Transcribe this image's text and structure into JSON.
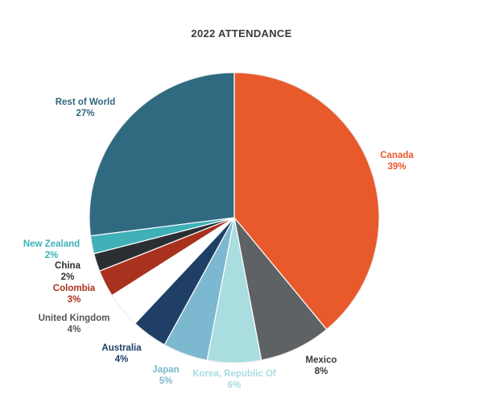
{
  "chart_data": {
    "type": "pie",
    "title": "2022 ATTENDANCE",
    "slices": [
      {
        "label": "Canada",
        "value": 39,
        "value_label": "39%",
        "color": "#e85a2c",
        "text_color": "#e85a2c"
      },
      {
        "label": "Mexico",
        "value": 8,
        "value_label": "8%",
        "color": "#5f6265",
        "text_color": "#3a3a3a"
      },
      {
        "label": "Korea, Republic Of",
        "value": 6,
        "value_label": "6%",
        "color": "#a9dde0",
        "text_color": "#a9dde0"
      },
      {
        "label": "Japan",
        "value": 5,
        "value_label": "5%",
        "color": "#7cb8cf",
        "text_color": "#7cb8cf"
      },
      {
        "label": "Australia",
        "value": 4,
        "value_label": "4%",
        "color": "#1f3f66",
        "text_color": "#1f3f66"
      },
      {
        "label": "United Kingdom",
        "value": 4,
        "value_label": "4%",
        "color": "#ffffff",
        "text_color": "#555555"
      },
      {
        "label": "Colombia",
        "value": 3,
        "value_label": "3%",
        "color": "#a8321e",
        "text_color": "#a8321e"
      },
      {
        "label": "China",
        "value": 2,
        "value_label": "2%",
        "color": "#2b2e33",
        "text_color": "#2b2e33"
      },
      {
        "label": "New Zealand",
        "value": 2,
        "value_label": "2%",
        "color": "#3fb0b8",
        "text_color": "#3fb0b8"
      },
      {
        "label": "Rest of World",
        "value": 27,
        "value_label": "27%",
        "color": "#2f6a80",
        "text_color": "#2f6a80"
      }
    ],
    "start": "top (12 o'clock)",
    "direction": "clockwise",
    "legend": "none (direct labels)"
  }
}
